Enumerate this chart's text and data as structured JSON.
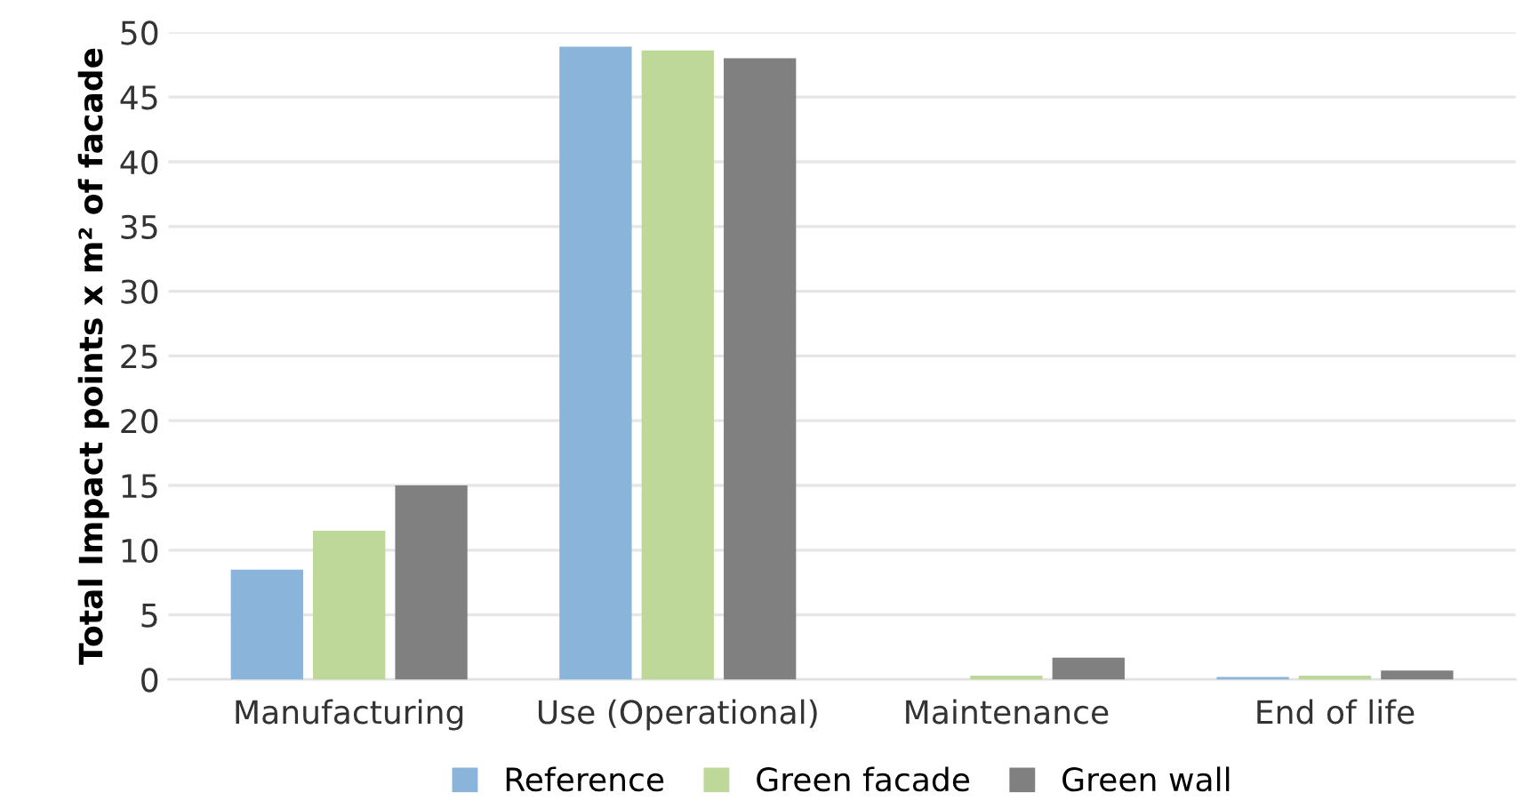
{
  "chart_data": {
    "type": "bar",
    "ylabel": "Total Impact points x m² of facade",
    "categories": [
      "Manufacturing",
      "Use (Operational)",
      "Maintenance",
      "End of life"
    ],
    "series": [
      {
        "name": "Reference",
        "color": "#8ab4da",
        "values": [
          8.5,
          48.9,
          0,
          0.2
        ]
      },
      {
        "name": "Green facade",
        "color": "#bdd898",
        "values": [
          11.5,
          48.6,
          0.3,
          0.3
        ]
      },
      {
        "name": "Green wall",
        "color": "#808080",
        "values": [
          15,
          48.0,
          1.7,
          0.7
        ]
      }
    ],
    "ylim": [
      0,
      50
    ],
    "yticks": [
      0,
      5,
      10,
      15,
      20,
      25,
      30,
      35,
      40,
      45,
      50
    ],
    "grid": "y",
    "legend": "bottom"
  }
}
